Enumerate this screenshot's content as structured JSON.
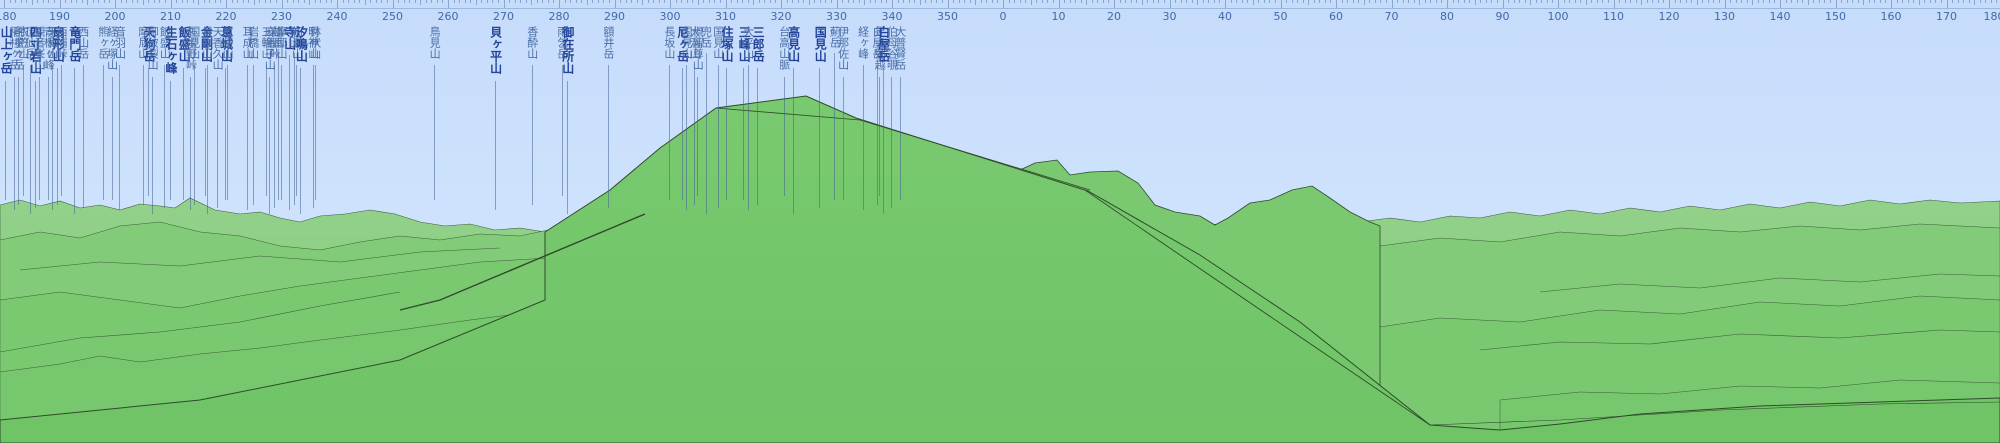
{
  "compass": {
    "ticks": [
      {
        "label": "180",
        "deg": 180
      },
      {
        "label": "190",
        "deg": 190
      },
      {
        "label": "200",
        "deg": 200
      },
      {
        "label": "210",
        "deg": 210
      },
      {
        "label": "220",
        "deg": 220
      },
      {
        "label": "230",
        "deg": 230
      },
      {
        "label": "240",
        "deg": 240
      },
      {
        "label": "250",
        "deg": 250
      },
      {
        "label": "260",
        "deg": 260
      },
      {
        "label": "270",
        "deg": 270
      },
      {
        "label": "280",
        "deg": 280
      },
      {
        "label": "290",
        "deg": 290
      },
      {
        "label": "300",
        "deg": 300
      },
      {
        "label": "310",
        "deg": 310
      },
      {
        "label": "320",
        "deg": 320
      },
      {
        "label": "330",
        "deg": 330
      },
      {
        "label": "340",
        "deg": 340
      },
      {
        "label": "350",
        "deg": 350
      },
      {
        "label": "0",
        "deg": 360
      },
      {
        "label": "10",
        "deg": 370
      },
      {
        "label": "20",
        "deg": 380
      },
      {
        "label": "30",
        "deg": 390
      },
      {
        "label": "40",
        "deg": 400
      },
      {
        "label": "50",
        "deg": 410
      },
      {
        "label": "60",
        "deg": 420
      },
      {
        "label": "70",
        "deg": 430
      },
      {
        "label": "80",
        "deg": 440
      },
      {
        "label": "90",
        "deg": 450
      },
      {
        "label": "100",
        "deg": 460
      },
      {
        "label": "110",
        "deg": 470
      },
      {
        "label": "120",
        "deg": 480
      },
      {
        "label": "130",
        "deg": 490
      },
      {
        "label": "140",
        "deg": 500
      },
      {
        "label": "150",
        "deg": 510
      },
      {
        "label": "160",
        "deg": 520
      },
      {
        "label": "170",
        "deg": 530
      },
      {
        "label": "180",
        "deg": 540
      }
    ]
  },
  "peaks": [
    {
      "name": "山上ヶ岳",
      "deg": 180.2,
      "major": true
    },
    {
      "name": "稲村ヶ岳",
      "deg": 181.8,
      "major": false
    },
    {
      "name": "明星ヶ岳",
      "deg": 182.6,
      "major": false
    },
    {
      "name": "衣笠山",
      "deg": 183.4,
      "major": false
    },
    {
      "name": "頂仙岳",
      "deg": 184.6,
      "major": false
    },
    {
      "name": "四寸岩山",
      "deg": 185.5,
      "major": true
    },
    {
      "name": "観音峯山",
      "deg": 186.3,
      "major": false
    },
    {
      "name": "青根ヶ峰",
      "deg": 188.0,
      "major": false
    },
    {
      "name": "天和山",
      "deg": 188.6,
      "major": false
    },
    {
      "name": "扇形山",
      "deg": 189.6,
      "major": true
    },
    {
      "name": "西浦峠",
      "deg": 190.3,
      "major": false
    },
    {
      "name": "竜門岳",
      "deg": 192.6,
      "major": true
    },
    {
      "name": "西山岳",
      "deg": 194.2,
      "major": false
    },
    {
      "name": "熊ヶ岳",
      "deg": 197.8,
      "major": false
    },
    {
      "name": "経ヶ塚山",
      "deg": 199.4,
      "major": false
    },
    {
      "name": "音羽山",
      "deg": 200.8,
      "major": false
    },
    {
      "name": "摩尼山",
      "deg": 205.0,
      "major": false
    },
    {
      "name": "天狗岳",
      "deg": 206.0,
      "major": true
    },
    {
      "name": "御破裂山",
      "deg": 206.7,
      "major": false
    },
    {
      "name": "飯盛山",
      "deg": 208.9,
      "major": false
    },
    {
      "name": "生石ヶ峰",
      "deg": 209.9,
      "major": true
    },
    {
      "name": "飯盛山",
      "deg": 212.3,
      "major": true
    },
    {
      "name": "久留野峠",
      "deg": 213.6,
      "major": false
    },
    {
      "name": "国見山",
      "deg": 214.2,
      "major": false
    },
    {
      "name": "金剛山",
      "deg": 216.3,
      "major": true
    },
    {
      "name": "貝吹山",
      "deg": 216.5,
      "major": false
    },
    {
      "name": "天香久山",
      "deg": 218.4,
      "major": false
    },
    {
      "name": "葛城山",
      "deg": 219.9,
      "major": true
    },
    {
      "name": "畝傍山",
      "deg": 220.2,
      "major": false
    },
    {
      "name": "耳成山",
      "deg": 223.8,
      "major": false
    },
    {
      "name": "岩橋山",
      "deg": 224.8,
      "major": false
    },
    {
      "name": "三輪山",
      "deg": 227.2,
      "major": false
    },
    {
      "name": "麻呂子山",
      "deg": 227.8,
      "major": false
    },
    {
      "name": "岩屋峠",
      "deg": 228.6,
      "major": false
    },
    {
      "name": "雄岳",
      "deg": 229.3,
      "major": false
    },
    {
      "name": "摩耶山",
      "deg": 229.9,
      "major": false
    },
    {
      "name": "寺山",
      "deg": 231.3,
      "major": true
    },
    {
      "name": "城山",
      "deg": 232.2,
      "major": false
    },
    {
      "name": "初瀬山",
      "deg": 232.7,
      "major": false
    },
    {
      "name": "汐鳴山",
      "deg": 233.4,
      "major": true
    },
    {
      "name": "明神山",
      "deg": 235.6,
      "major": false
    },
    {
      "name": "鉢伏山",
      "deg": 236.0,
      "major": false
    },
    {
      "name": "鳥見山",
      "deg": 257.5,
      "major": false
    },
    {
      "name": "貝ヶ平山",
      "deg": 268.4,
      "major": true
    },
    {
      "name": "香酔山",
      "deg": 275.1,
      "major": false
    },
    {
      "name": "雨乞岳",
      "deg": 280.5,
      "major": false
    },
    {
      "name": "御在所山",
      "deg": 281.4,
      "major": true
    },
    {
      "name": "額井岳",
      "deg": 288.8,
      "major": false
    },
    {
      "name": "長坂山",
      "deg": 299.8,
      "major": false
    },
    {
      "name": "尼ヶ岳",
      "deg": 302.1,
      "major": true
    },
    {
      "name": "国見山",
      "deg": 302.9,
      "major": false
    },
    {
      "name": "大洞山",
      "deg": 304.4,
      "major": false
    },
    {
      "name": "倶留尊山",
      "deg": 304.9,
      "major": false
    },
    {
      "name": "兜岳",
      "deg": 306.4,
      "major": false
    },
    {
      "name": "国見山",
      "deg": 308.6,
      "major": false
    },
    {
      "name": "住塚山",
      "deg": 310.1,
      "major": true
    },
    {
      "name": "三峰山",
      "deg": 313.2,
      "major": true
    },
    {
      "name": "大平山",
      "deg": 314.0,
      "major": false
    },
    {
      "name": "三郎岳",
      "deg": 315.7,
      "major": true
    },
    {
      "name": "台高山脈",
      "deg": 320.5,
      "major": false
    },
    {
      "name": "高見山",
      "deg": 322.1,
      "major": true
    },
    {
      "name": "国見山",
      "deg": 326.9,
      "major": true
    },
    {
      "name": "薊岳",
      "deg": 329.6,
      "major": false
    },
    {
      "name": "伊那佐山",
      "deg": 331.1,
      "major": false
    },
    {
      "name": "経ヶ峰",
      "deg": 334.7,
      "major": false
    },
    {
      "name": "白屋岳",
      "deg": 337.3,
      "major": false
    },
    {
      "name": "足ノ郷越",
      "deg": 337.7,
      "major": false
    },
    {
      "name": "白屋岳",
      "deg": 338.3,
      "major": true
    },
    {
      "name": "伯母谷覗",
      "deg": 339.9,
      "major": false
    },
    {
      "name": "大普賢岳",
      "deg": 341.4,
      "major": false
    }
  ],
  "colors": {
    "sky_top": "#c6dcfb",
    "sky_bottom": "#dce9fb",
    "terrain_far": "#8ecf87",
    "terrain_near": "#75c86c",
    "ridge_line": "#2f4a2a",
    "label": "#4a6ea6",
    "label_major": "#24459a"
  }
}
